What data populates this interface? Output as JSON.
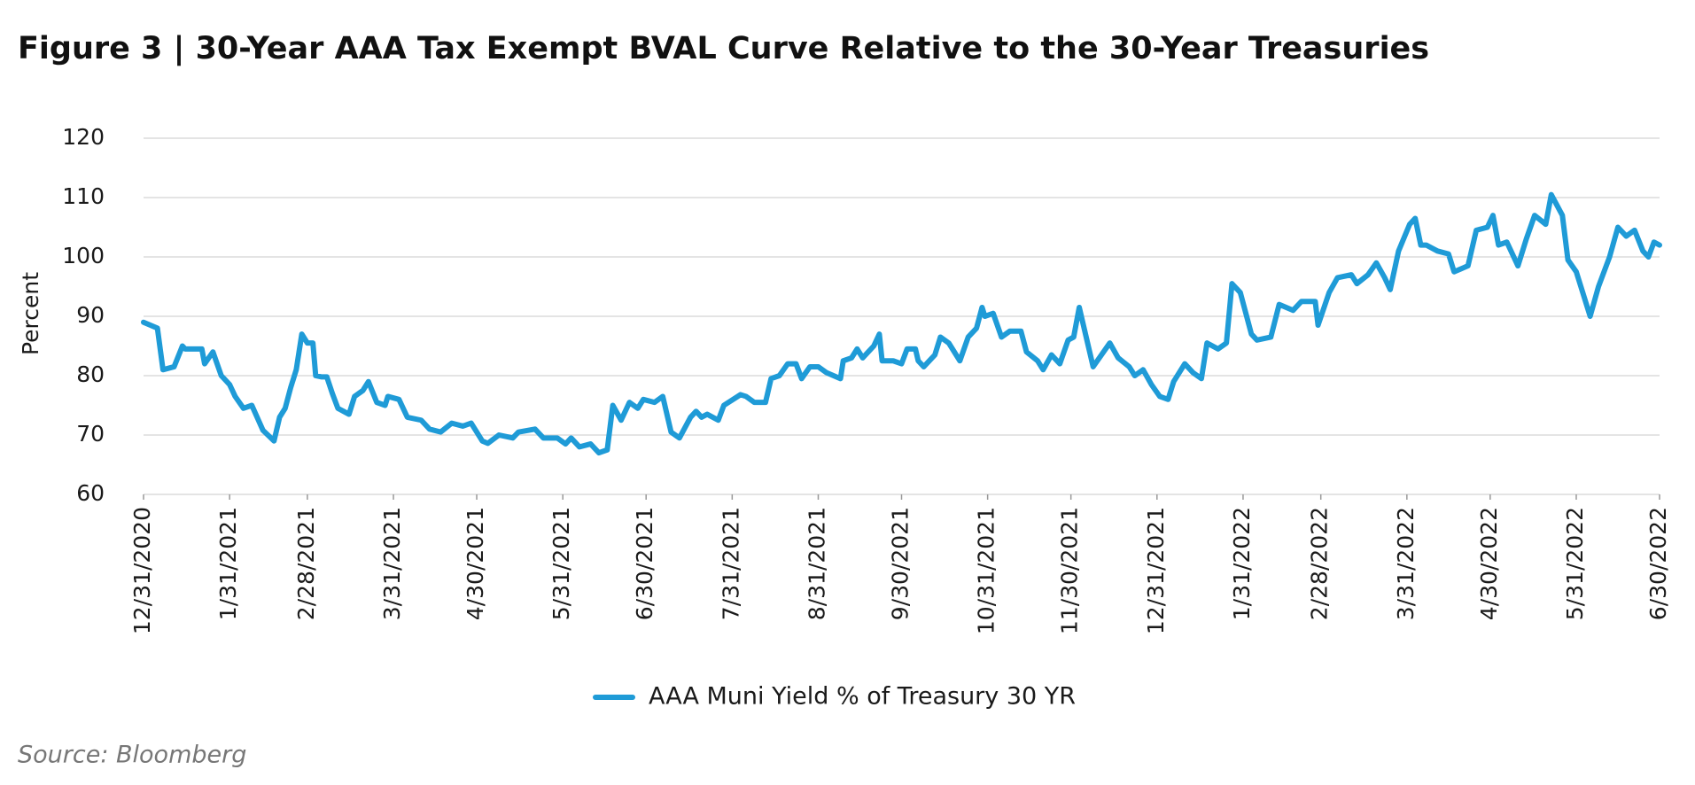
{
  "chart_data": {
    "type": "line",
    "title": "Figure 3 | 30-Year AAA Tax Exempt BVAL Curve Relative to the 30-Year Treasuries",
    "y_label": "Percent",
    "source": "Source: Bloomberg",
    "xlim": [
      "2020-12-31",
      "2022-06-30"
    ],
    "xticks": [
      {
        "value": "2020-12-31",
        "label": "12/31/2020"
      },
      {
        "value": "2021-01-31",
        "label": "1/31/2021"
      },
      {
        "value": "2021-02-28",
        "label": "2/28/2021"
      },
      {
        "value": "2021-03-31",
        "label": "3/31/2021"
      },
      {
        "value": "2021-04-30",
        "label": "4/30/2021"
      },
      {
        "value": "2021-05-31",
        "label": "5/31/2021"
      },
      {
        "value": "2021-06-30",
        "label": "6/30/2021"
      },
      {
        "value": "2021-07-31",
        "label": "7/31/2021"
      },
      {
        "value": "2021-08-31",
        "label": "8/31/2021"
      },
      {
        "value": "2021-09-30",
        "label": "9/30/2021"
      },
      {
        "value": "2021-10-31",
        "label": "10/31/2021"
      },
      {
        "value": "2021-11-30",
        "label": "11/30/2021"
      },
      {
        "value": "2021-12-31",
        "label": "12/31/2021"
      },
      {
        "value": "2022-01-31",
        "label": "1/31/2022"
      },
      {
        "value": "2022-02-28",
        "label": "2/28/2022"
      },
      {
        "value": "2022-03-31",
        "label": "3/31/2022"
      },
      {
        "value": "2022-04-30",
        "label": "4/30/2022"
      },
      {
        "value": "2022-05-31",
        "label": "5/31/2022"
      },
      {
        "value": "2022-06-30",
        "label": "6/30/2022"
      }
    ],
    "ylim": [
      60,
      120
    ],
    "yticks": [
      60,
      70,
      80,
      90,
      100,
      110,
      120
    ],
    "grid": true,
    "legend": "bottom",
    "x": [
      "2020-12-31",
      "2021-01-05",
      "2021-01-07",
      "2021-01-11",
      "2021-01-14",
      "2021-01-15",
      "2021-01-21",
      "2021-01-22",
      "2021-01-25",
      "2021-01-28",
      "2021-01-31",
      "2021-02-02",
      "2021-02-05",
      "2021-02-08",
      "2021-02-12",
      "2021-02-16",
      "2021-02-18",
      "2021-02-20",
      "2021-02-22",
      "2021-02-24",
      "2021-02-26",
      "2021-02-28",
      "2021-03-02",
      "2021-03-03",
      "2021-03-05",
      "2021-03-07",
      "2021-03-09",
      "2021-03-11",
      "2021-03-13",
      "2021-03-15",
      "2021-03-17",
      "2021-03-20",
      "2021-03-22",
      "2021-03-25",
      "2021-03-28",
      "2021-03-29",
      "2021-04-02",
      "2021-04-05",
      "2021-04-10",
      "2021-04-13",
      "2021-04-17",
      "2021-04-21",
      "2021-04-25",
      "2021-04-28",
      "2021-05-02",
      "2021-05-04",
      "2021-05-08",
      "2021-05-13",
      "2021-05-15",
      "2021-05-21",
      "2021-05-24",
      "2021-05-29",
      "2021-06-01",
      "2021-06-03",
      "2021-06-06",
      "2021-06-10",
      "2021-06-13",
      "2021-06-16",
      "2021-06-18",
      "2021-06-21",
      "2021-06-24",
      "2021-06-27",
      "2021-06-29",
      "2021-07-03",
      "2021-07-06",
      "2021-07-09",
      "2021-07-12",
      "2021-07-16",
      "2021-07-18",
      "2021-07-20",
      "2021-07-22",
      "2021-07-26",
      "2021-07-28",
      "2021-08-03",
      "2021-08-05",
      "2021-08-08",
      "2021-08-12",
      "2021-08-14",
      "2021-08-17",
      "2021-08-20",
      "2021-08-23",
      "2021-08-25",
      "2021-08-28",
      "2021-08-31",
      "2021-09-03",
      "2021-09-08",
      "2021-09-09",
      "2021-09-12",
      "2021-09-14",
      "2021-09-16",
      "2021-09-20",
      "2021-09-22",
      "2021-09-23",
      "2021-09-27",
      "2021-09-30",
      "2021-10-02",
      "2021-10-05",
      "2021-10-06",
      "2021-10-08",
      "2021-10-12",
      "2021-10-14",
      "2021-10-17",
      "2021-10-21",
      "2021-10-24",
      "2021-10-27",
      "2021-10-29",
      "2021-10-30",
      "2021-11-02",
      "2021-11-05",
      "2021-11-08",
      "2021-11-12",
      "2021-11-14",
      "2021-11-18",
      "2021-11-20",
      "2021-11-23",
      "2021-11-26",
      "2021-11-29",
      "2021-12-01",
      "2021-12-03",
      "2021-12-08",
      "2021-12-14",
      "2021-12-17",
      "2021-12-21",
      "2021-12-23",
      "2021-12-26",
      "2021-12-29",
      "2022-01-01",
      "2022-01-04",
      "2022-01-06",
      "2022-01-10",
      "2022-01-13",
      "2022-01-16",
      "2022-01-18",
      "2022-01-22",
      "2022-01-25",
      "2022-01-27",
      "2022-01-30",
      "2022-02-03",
      "2022-02-05",
      "2022-02-10",
      "2022-02-13",
      "2022-02-18",
      "2022-02-21",
      "2022-02-26",
      "2022-02-27",
      "2022-03-03",
      "2022-03-06",
      "2022-03-11",
      "2022-03-13",
      "2022-03-17",
      "2022-03-20",
      "2022-03-23",
      "2022-03-25",
      "2022-03-28",
      "2022-04-01",
      "2022-04-03",
      "2022-04-05",
      "2022-04-07",
      "2022-04-11",
      "2022-04-15",
      "2022-04-17",
      "2022-04-22",
      "2022-04-25",
      "2022-04-29",
      "2022-05-01",
      "2022-05-03",
      "2022-05-06",
      "2022-05-10",
      "2022-05-13",
      "2022-05-16",
      "2022-05-20",
      "2022-05-22",
      "2022-05-26",
      "2022-05-28",
      "2022-05-31",
      "2022-06-03",
      "2022-06-05",
      "2022-06-08",
      "2022-06-12",
      "2022-06-15",
      "2022-06-18",
      "2022-06-21",
      "2022-06-24",
      "2022-06-26",
      "2022-06-28",
      "2022-06-30"
    ],
    "series": [
      {
        "name": "AAA Muni Yield % of Treasury 30 YR",
        "color": "#1f9bd7",
        "values": [
          89,
          88,
          81,
          81.5,
          85,
          84.5,
          84.5,
          82,
          84,
          80,
          78.5,
          76.5,
          74.5,
          75,
          70.8,
          69,
          73,
          74.5,
          78,
          81,
          87,
          85.5,
          85.5,
          80,
          79.8,
          79.8,
          77,
          74.5,
          74,
          73.5,
          76.5,
          77.5,
          79,
          75.5,
          75,
          76.5,
          76,
          73,
          72.5,
          71,
          70.5,
          72,
          71.5,
          72,
          69,
          68.6,
          70,
          69.5,
          70.5,
          71,
          69.5,
          69.5,
          68.5,
          69.5,
          68,
          68.5,
          67,
          67.5,
          75,
          72.5,
          75.5,
          74.5,
          76,
          75.5,
          76.5,
          70.5,
          69.5,
          73,
          74,
          73,
          73.5,
          72.5,
          75,
          76.8,
          76.5,
          75.5,
          75.5,
          79.5,
          80,
          82,
          82,
          79.5,
          81.5,
          81.5,
          80.5,
          79.5,
          82.5,
          83,
          84.5,
          83,
          85,
          87,
          82.5,
          82.5,
          82,
          84.5,
          84.5,
          82.5,
          81.5,
          83.5,
          86.5,
          85.5,
          82.5,
          86.5,
          88,
          91.5,
          90,
          90.5,
          86.5,
          87.5,
          87.5,
          84,
          82.5,
          81,
          83.5,
          82,
          86,
          86.5,
          91.5,
          81.5,
          85.5,
          83,
          81.5,
          80,
          81,
          78.5,
          76.5,
          76,
          79,
          82,
          80.5,
          79.5,
          85.5,
          84.5,
          85.5,
          95.5,
          94,
          87,
          86,
          86.5,
          92,
          91,
          92.5,
          92.5,
          88.5,
          94,
          96.5,
          97,
          95.5,
          97,
          99,
          96.5,
          94.5,
          101,
          105.5,
          106.5,
          102,
          102,
          101,
          100.5,
          97.5,
          98.5,
          104.5,
          105,
          107,
          102,
          102.5,
          98.5,
          103,
          107,
          105.5,
          110.5,
          107,
          99.5,
          97.5,
          93,
          90,
          95,
          100,
          105,
          103.5,
          104.5,
          101,
          100,
          102.5,
          102
        ]
      }
    ]
  }
}
